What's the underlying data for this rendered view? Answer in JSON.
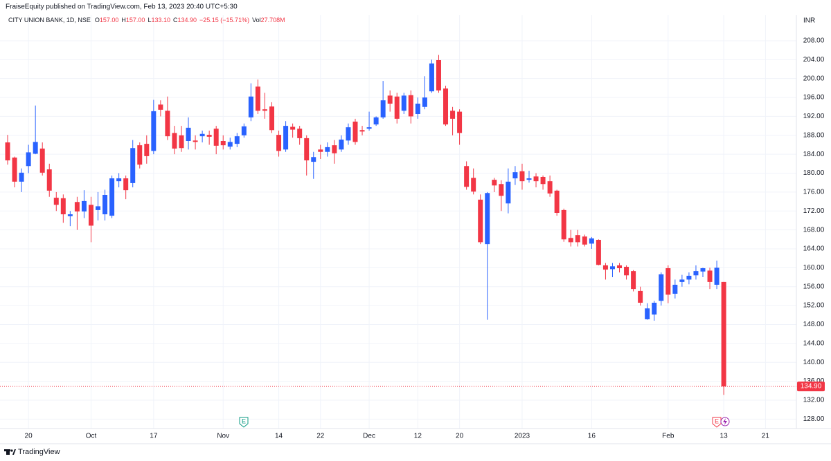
{
  "chart_data": {
    "type": "candlestick",
    "publisher_line": "FraiseEquity published on TradingView.com, Feb 13, 2023 20:40 UTC+5:30",
    "symbol": "CITY UNION BANK, 1D, NSE",
    "ohlc_legend": [
      {
        "key": "O",
        "value": "157.00"
      },
      {
        "key": "H",
        "value": "157.00"
      },
      {
        "key": "L",
        "value": "133.10"
      },
      {
        "key": "C",
        "value": "134.90"
      }
    ],
    "change_label": "−25.15 (−15.71%)",
    "volume_legend": {
      "key": "Vol",
      "value": "27.708M"
    },
    "currency": "INR",
    "footer": "TradingView",
    "events": [
      "E",
      "E"
    ],
    "up_color": "#2962ff",
    "down_color": "#f23645",
    "ylim": [
      126,
      213.4
    ],
    "yticks": [
      {
        "value": 128,
        "label": "128.00"
      },
      {
        "value": 132,
        "label": "132.00"
      },
      {
        "value": 136,
        "label": "136.00"
      },
      {
        "value": 140,
        "label": "140.00"
      },
      {
        "value": 144,
        "label": "144.00"
      },
      {
        "value": 148,
        "label": "148.00"
      },
      {
        "value": 152,
        "label": "152.00"
      },
      {
        "value": 156,
        "label": "156.00"
      },
      {
        "value": 160,
        "label": "160.00"
      },
      {
        "value": 164,
        "label": "164.00"
      },
      {
        "value": 168,
        "label": "168.00"
      },
      {
        "value": 172,
        "label": "172.00"
      },
      {
        "value": 176,
        "label": "176.00"
      },
      {
        "value": 180,
        "label": "180.00"
      },
      {
        "value": 184,
        "label": "184.00"
      },
      {
        "value": 188,
        "label": "188.00"
      },
      {
        "value": 192,
        "label": "192.00"
      },
      {
        "value": 196,
        "label": "196.00"
      },
      {
        "value": 200,
        "label": "200.00"
      },
      {
        "value": 204,
        "label": "204.00"
      },
      {
        "value": 208,
        "label": "208.00"
      }
    ],
    "grid": true,
    "last_price": {
      "value": 134.9,
      "label": "134.90"
    },
    "future_xtick": "21",
    "categories": [
      null,
      null,
      null,
      "20",
      null,
      null,
      null,
      null,
      null,
      null,
      null,
      null,
      "Oct",
      null,
      null,
      null,
      null,
      null,
      null,
      null,
      null,
      "17",
      null,
      null,
      null,
      null,
      null,
      null,
      null,
      null,
      null,
      "Nov",
      null,
      null,
      null,
      null,
      null,
      null,
      null,
      "14",
      null,
      null,
      null,
      null,
      null,
      "22",
      null,
      null,
      null,
      null,
      null,
      null,
      "Dec",
      null,
      null,
      null,
      null,
      null,
      null,
      "12",
      null,
      null,
      null,
      null,
      null,
      "20",
      null,
      null,
      null,
      null,
      null,
      null,
      null,
      null,
      "2023",
      null,
      null,
      null,
      null,
      null,
      null,
      null,
      null,
      null,
      "16",
      null,
      null,
      null,
      null,
      null,
      null,
      null,
      null,
      null,
      null,
      "Feb",
      null,
      null,
      null,
      null,
      null,
      null,
      null,
      "13"
    ],
    "open": [
      186.5,
      183.3,
      178.2,
      181.5,
      184.1,
      185.2,
      180.8,
      174.8,
      174.7,
      170.9,
      173.9,
      171.9,
      173.3,
      172.2,
      171.3,
      171,
      178.3,
      178.9,
      177.9,
      185.9,
      186.2,
      184.7,
      194.5,
      193.2,
      188.5,
      188,
      186.8,
      186.9,
      187.8,
      188.1,
      189.4,
      186.8,
      185.6,
      186.2,
      188,
      191.8,
      198.3,
      193.5,
      194.1,
      188.1,
      185,
      189.8,
      189.4,
      187.4,
      182.4,
      185,
      184.5,
      185.9,
      185,
      186.9,
      190.9,
      189.1,
      189.4,
      190.3,
      191.8,
      196.4,
      196.2,
      193.2,
      196.5,
      192.5,
      194,
      197.3,
      203.9,
      197.9,
      193.2,
      193,
      181.5,
      179,
      174.4,
      165,
      178.6,
      177.7,
      173.6,
      178.9,
      180.4,
      178.6,
      179.3,
      179.2,
      178.3,
      176.3,
      172.2,
      166.3,
      166.9,
      166.6,
      165.1,
      165.9,
      160.5,
      159.7,
      160.5,
      160.2,
      159.3,
      155.1,
      149.1,
      150.1,
      153,
      159.9,
      154.5,
      157,
      157.5,
      158.4,
      159.2,
      159.4,
      156.4,
      157
    ],
    "high": [
      188.1,
      183.5,
      181,
      186,
      194.3,
      186.5,
      182,
      176,
      175.5,
      172,
      175,
      176.4,
      175,
      176,
      176.5,
      179.5,
      180,
      179.5,
      187,
      186.5,
      188,
      195.5,
      195.4,
      196.2,
      190,
      190,
      191.8,
      188,
      189,
      189,
      190,
      188,
      187.5,
      188.5,
      190.5,
      199,
      199.8,
      197,
      195,
      189,
      191,
      190.5,
      190,
      188,
      184.5,
      186,
      186.5,
      187,
      188,
      190.5,
      191.5,
      190,
      193,
      192,
      199.5,
      197.5,
      197,
      197,
      197.5,
      196,
      200.5,
      204,
      205,
      198.5,
      194,
      193.5,
      182.5,
      181,
      175.5,
      176,
      179,
      178.5,
      181,
      181.5,
      182,
      180.5,
      180,
      179.5,
      179.5,
      176.5,
      172.5,
      168,
      168,
      167,
      166.5,
      166,
      161,
      161,
      161,
      160.5,
      159.5,
      156,
      152.5,
      153,
      159,
      160.5,
      157.5,
      158.5,
      159,
      160.5,
      160,
      160,
      161.5,
      157
    ],
    "low": [
      181.8,
      177,
      176,
      180,
      184,
      179.5,
      175,
      172,
      169.5,
      168.8,
      168,
      170.5,
      165.4,
      170,
      170,
      170.5,
      177,
      174.5,
      177,
      181,
      182,
      184,
      192,
      187,
      184,
      184.5,
      185,
      185,
      186.5,
      186,
      184,
      185,
      185,
      185.5,
      187.5,
      191,
      192.5,
      191.5,
      188.5,
      183.5,
      184.5,
      187.5,
      186,
      179.5,
      178.8,
      183,
      183.5,
      182,
      184.5,
      186,
      186,
      188,
      189,
      190,
      191.5,
      193,
      190.5,
      192.5,
      190.5,
      191.5,
      193.5,
      197,
      197,
      190,
      188,
      186,
      176.5,
      175.5,
      165,
      149,
      176,
      172,
      171.5,
      177.5,
      176.5,
      178,
      177,
      176.5,
      175,
      171,
      165.5,
      164.5,
      164.5,
      164.5,
      164,
      160.5,
      157.5,
      158,
      159,
      157.5,
      155,
      152,
      149,
      148.8,
      152,
      152.5,
      153.5,
      156,
      156.5,
      157.5,
      158,
      155.5,
      155.5,
      133.1
    ],
    "close": [
      182.7,
      178.2,
      180.1,
      184.4,
      186.6,
      180.1,
      176.3,
      173.3,
      171.3,
      171.3,
      171.9,
      174.1,
      168.9,
      173,
      175.4,
      178.9,
      178.9,
      176.4,
      185.3,
      181.8,
      183.6,
      193.1,
      193.4,
      187.8,
      185.2,
      185.3,
      189.6,
      186.6,
      188.3,
      187.7,
      185.8,
      185.9,
      186.6,
      187.8,
      189.9,
      196.2,
      193.2,
      193.2,
      189.1,
      184.7,
      190,
      189.2,
      187.4,
      182.7,
      183.4,
      184.5,
      185.5,
      184.2,
      187.1,
      189.7,
      186.6,
      188.8,
      189.7,
      191.8,
      195.4,
      194.7,
      191.5,
      196.4,
      192,
      194.7,
      196,
      203.2,
      197.5,
      190.3,
      191.5,
      188.5,
      177.1,
      176.1,
      165.4,
      175.8,
      177.4,
      175.2,
      178.2,
      180.2,
      178.3,
      178.9,
      178.3,
      177.7,
      175.7,
      171.6,
      166,
      165.4,
      165.4,
      164.9,
      166.2,
      160.6,
      159.6,
      160.3,
      159.9,
      158.4,
      155.5,
      152.6,
      151.4,
      152.6,
      158.6,
      154.3,
      156.4,
      157.5,
      158.3,
      159.3,
      159.9,
      157,
      160,
      134.9
    ]
  }
}
